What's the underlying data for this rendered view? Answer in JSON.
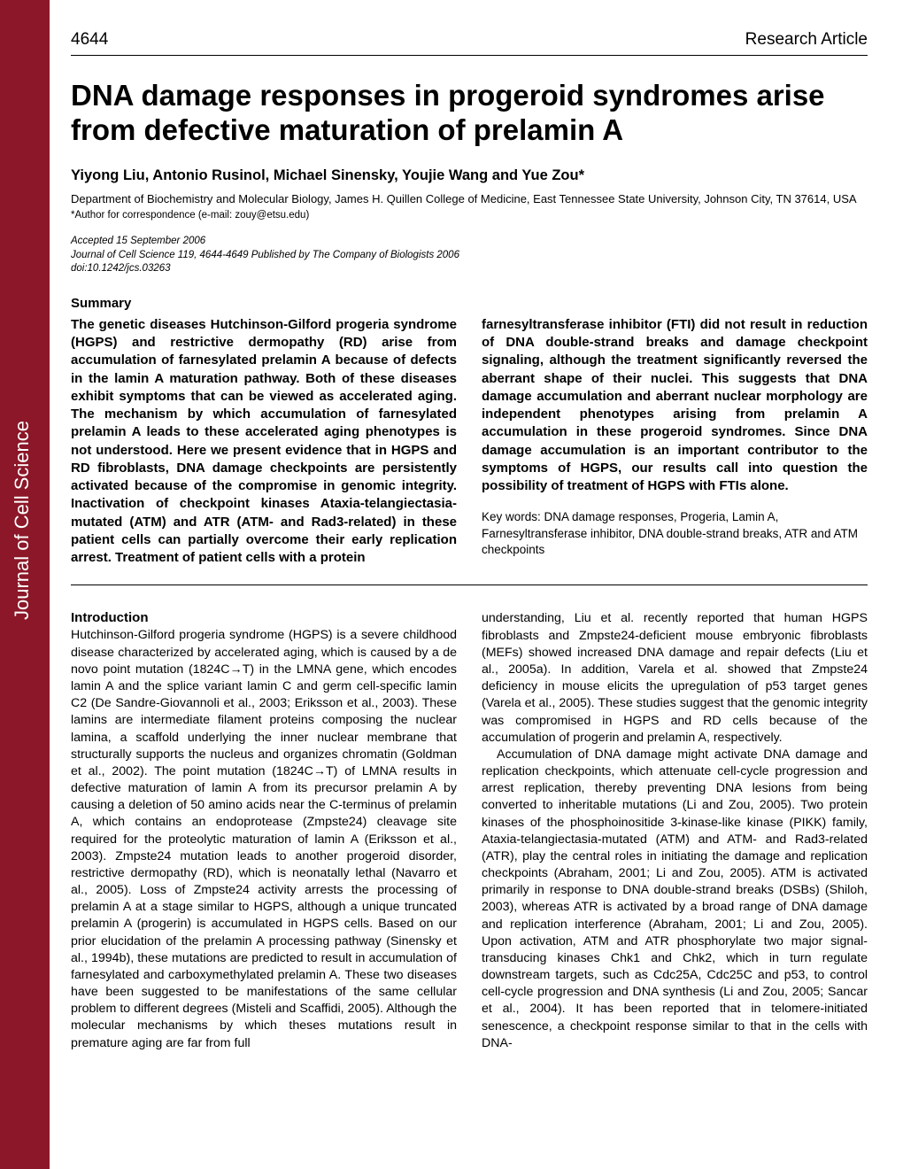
{
  "spine_label": "Journal of Cell Science",
  "page_number": "4644",
  "article_type": "Research Article",
  "title": "DNA damage responses in progeroid syndromes arise from defective maturation of prelamin A",
  "authors": "Yiyong Liu, Antonio Rusinol, Michael Sinensky, Youjie Wang and Yue Zou*",
  "affiliation": "Department of Biochemistry and Molecular Biology, James H. Quillen College of Medicine, East Tennessee State University, Johnson City, TN 37614, USA",
  "correspondence": "*Author for correspondence (e-mail: zouy@etsu.edu)",
  "accepted": "Accepted 15 September 2006",
  "journal_line": "Journal of Cell Science 119, 4644-4649 Published by The Company of Biologists 2006",
  "doi": "doi:10.1242/jcs.03263",
  "summary_label": "Summary",
  "summary_col1": "The genetic diseases Hutchinson-Gilford progeria syndrome (HGPS) and restrictive dermopathy (RD) arise from accumulation of farnesylated prelamin A because of defects in the lamin A maturation pathway. Both of these diseases exhibit symptoms that can be viewed as accelerated aging. The mechanism by which accumulation of farnesylated prelamin A leads to these accelerated aging phenotypes is not understood. Here we present evidence that in HGPS and RD fibroblasts, DNA damage checkpoints are persistently activated because of the compromise in genomic integrity. Inactivation of checkpoint kinases Ataxia-telangiectasia-mutated (ATM) and ATR (ATM- and Rad3-related) in these patient cells can partially overcome their early replication arrest. Treatment of patient cells with a protein",
  "summary_col2": "farnesyltransferase inhibitor (FTI) did not result in reduction of DNA double-strand breaks and damage checkpoint signaling, although the treatment significantly reversed the aberrant shape of their nuclei. This suggests that DNA damage accumulation and aberrant nuclear morphology are independent phenotypes arising from prelamin A accumulation in these progeroid syndromes. Since DNA damage accumulation is an important contributor to the symptoms of HGPS, our results call into question the possibility of treatment of HGPS with FTIs alone.",
  "keywords": "Key words: DNA damage responses, Progeria, Lamin A, Farnesyltransferase inhibitor, DNA double-strand breaks, ATR and ATM checkpoints",
  "intro_label": "Introduction",
  "intro_col1": "Hutchinson-Gilford progeria syndrome (HGPS) is a severe childhood disease characterized by accelerated aging, which is caused by a de novo point mutation (1824C→T) in the LMNA gene, which encodes lamin A and the splice variant lamin C and germ cell-specific lamin C2 (De Sandre-Giovannoli et al., 2003; Eriksson et al., 2003). These lamins are intermediate filament proteins composing the nuclear lamina, a scaffold underlying the inner nuclear membrane that structurally supports the nucleus and organizes chromatin (Goldman et al., 2002). The point mutation (1824C→T) of LMNA results in defective maturation of lamin A from its precursor prelamin A by causing a deletion of 50 amino acids near the C-terminus of prelamin A, which contains an endoprotease (Zmpste24) cleavage site required for the proteolytic maturation of lamin A (Eriksson et al., 2003). Zmpste24 mutation leads to another progeroid disorder, restrictive dermopathy (RD), which is neonatally lethal (Navarro et al., 2005). Loss of Zmpste24 activity arrests the processing of prelamin A at a stage similar to HGPS, although a unique truncated prelamin A (progerin) is accumulated in HGPS cells. Based on our prior elucidation of the prelamin A processing pathway (Sinensky et al., 1994b), these mutations are predicted to result in accumulation of farnesylated and carboxymethylated prelamin A. These two diseases have been suggested to be manifestations of the same cellular problem to different degrees (Misteli and Scaffidi, 2005). Although the molecular mechanisms by which theses mutations result in premature aging are far from full",
  "intro_col2_p1": "understanding, Liu et al. recently reported that human HGPS fibroblasts and Zmpste24-deficient mouse embryonic fibroblasts (MEFs) showed increased DNA damage and repair defects (Liu et al., 2005a). In addition, Varela et al. showed that Zmpste24 deficiency in mouse elicits the upregulation of p53 target genes (Varela et al., 2005). These studies suggest that the genomic integrity was compromised in HGPS and RD cells because of the accumulation of progerin and prelamin A, respectively.",
  "intro_col2_p2": "Accumulation of DNA damage might activate DNA damage and replication checkpoints, which attenuate cell-cycle progression and arrest replication, thereby preventing DNA lesions from being converted to inheritable mutations (Li and Zou, 2005). Two protein kinases of the phosphoinositide 3-kinase-like kinase (PIKK) family, Ataxia-telangiectasia-mutated (ATM) and ATM- and Rad3-related (ATR), play the central roles in initiating the damage and replication checkpoints (Abraham, 2001; Li and Zou, 2005). ATM is activated primarily in response to DNA double-strand breaks (DSBs) (Shiloh, 2003), whereas ATR is activated by a broad range of DNA damage and replication interference (Abraham, 2001; Li and Zou, 2005). Upon activation, ATM and ATR phosphorylate two major signal-transducing kinases Chk1 and Chk2, which in turn regulate downstream targets, such as Cdc25A, Cdc25C and p53, to control cell-cycle progression and DNA synthesis (Li and Zou, 2005; Sancar et al., 2004). It has been reported that in telomere-initiated senescence, a checkpoint response similar to that in the cells with DNA-",
  "colors": {
    "red_bar": "#8b1728",
    "text": "#000000",
    "bg": "#ffffff"
  }
}
